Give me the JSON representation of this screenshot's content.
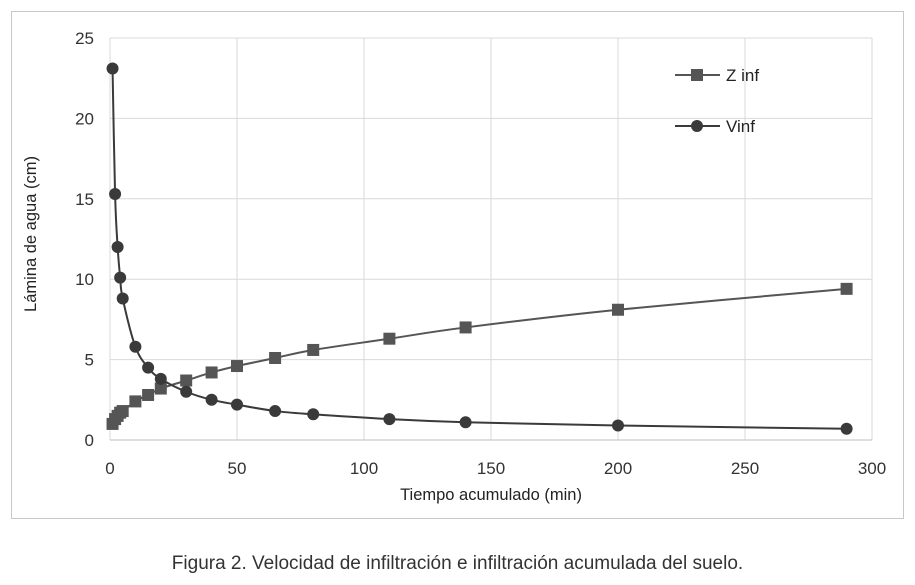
{
  "chart_data": {
    "type": "line",
    "title": "",
    "xlabel": "Tiempo acumulado (min)",
    "ylabel": "Lámina de agua (cm)",
    "xlim": [
      0,
      300
    ],
    "ylim": [
      0,
      25
    ],
    "xticks": [
      0,
      50,
      100,
      150,
      200,
      250,
      300
    ],
    "yticks": [
      0,
      5,
      10,
      15,
      20,
      25
    ],
    "xtick_labels": [
      "0",
      "50",
      "100",
      "150",
      "200",
      "250",
      "300"
    ],
    "ytick_labels": [
      "0",
      "5",
      "10",
      "15",
      "20",
      "25"
    ],
    "grid": true,
    "legend_position": "top-right",
    "series": [
      {
        "name": "Z inf",
        "marker": "square",
        "color": "#555555",
        "x": [
          1,
          2,
          3,
          4,
          5,
          10,
          15,
          20,
          30,
          40,
          50,
          65,
          80,
          110,
          140,
          200,
          290
        ],
        "y": [
          1.0,
          1.3,
          1.5,
          1.7,
          1.8,
          2.4,
          2.8,
          3.2,
          3.7,
          4.2,
          4.6,
          5.1,
          5.6,
          6.3,
          7.0,
          8.1,
          9.4
        ]
      },
      {
        "name": "Vinf",
        "marker": "circle",
        "color": "#3a3a3a",
        "x": [
          1,
          2,
          3,
          4,
          5,
          10,
          15,
          20,
          30,
          40,
          50,
          65,
          80,
          110,
          140,
          200,
          290
        ],
        "y": [
          23.1,
          15.3,
          12.0,
          10.1,
          8.8,
          5.8,
          4.5,
          3.8,
          3.0,
          2.5,
          2.2,
          1.8,
          1.6,
          1.3,
          1.1,
          0.9,
          0.7
        ]
      }
    ]
  },
  "caption": "Figura 2. Velocidad de infiltración e infiltración acumulada del suelo."
}
